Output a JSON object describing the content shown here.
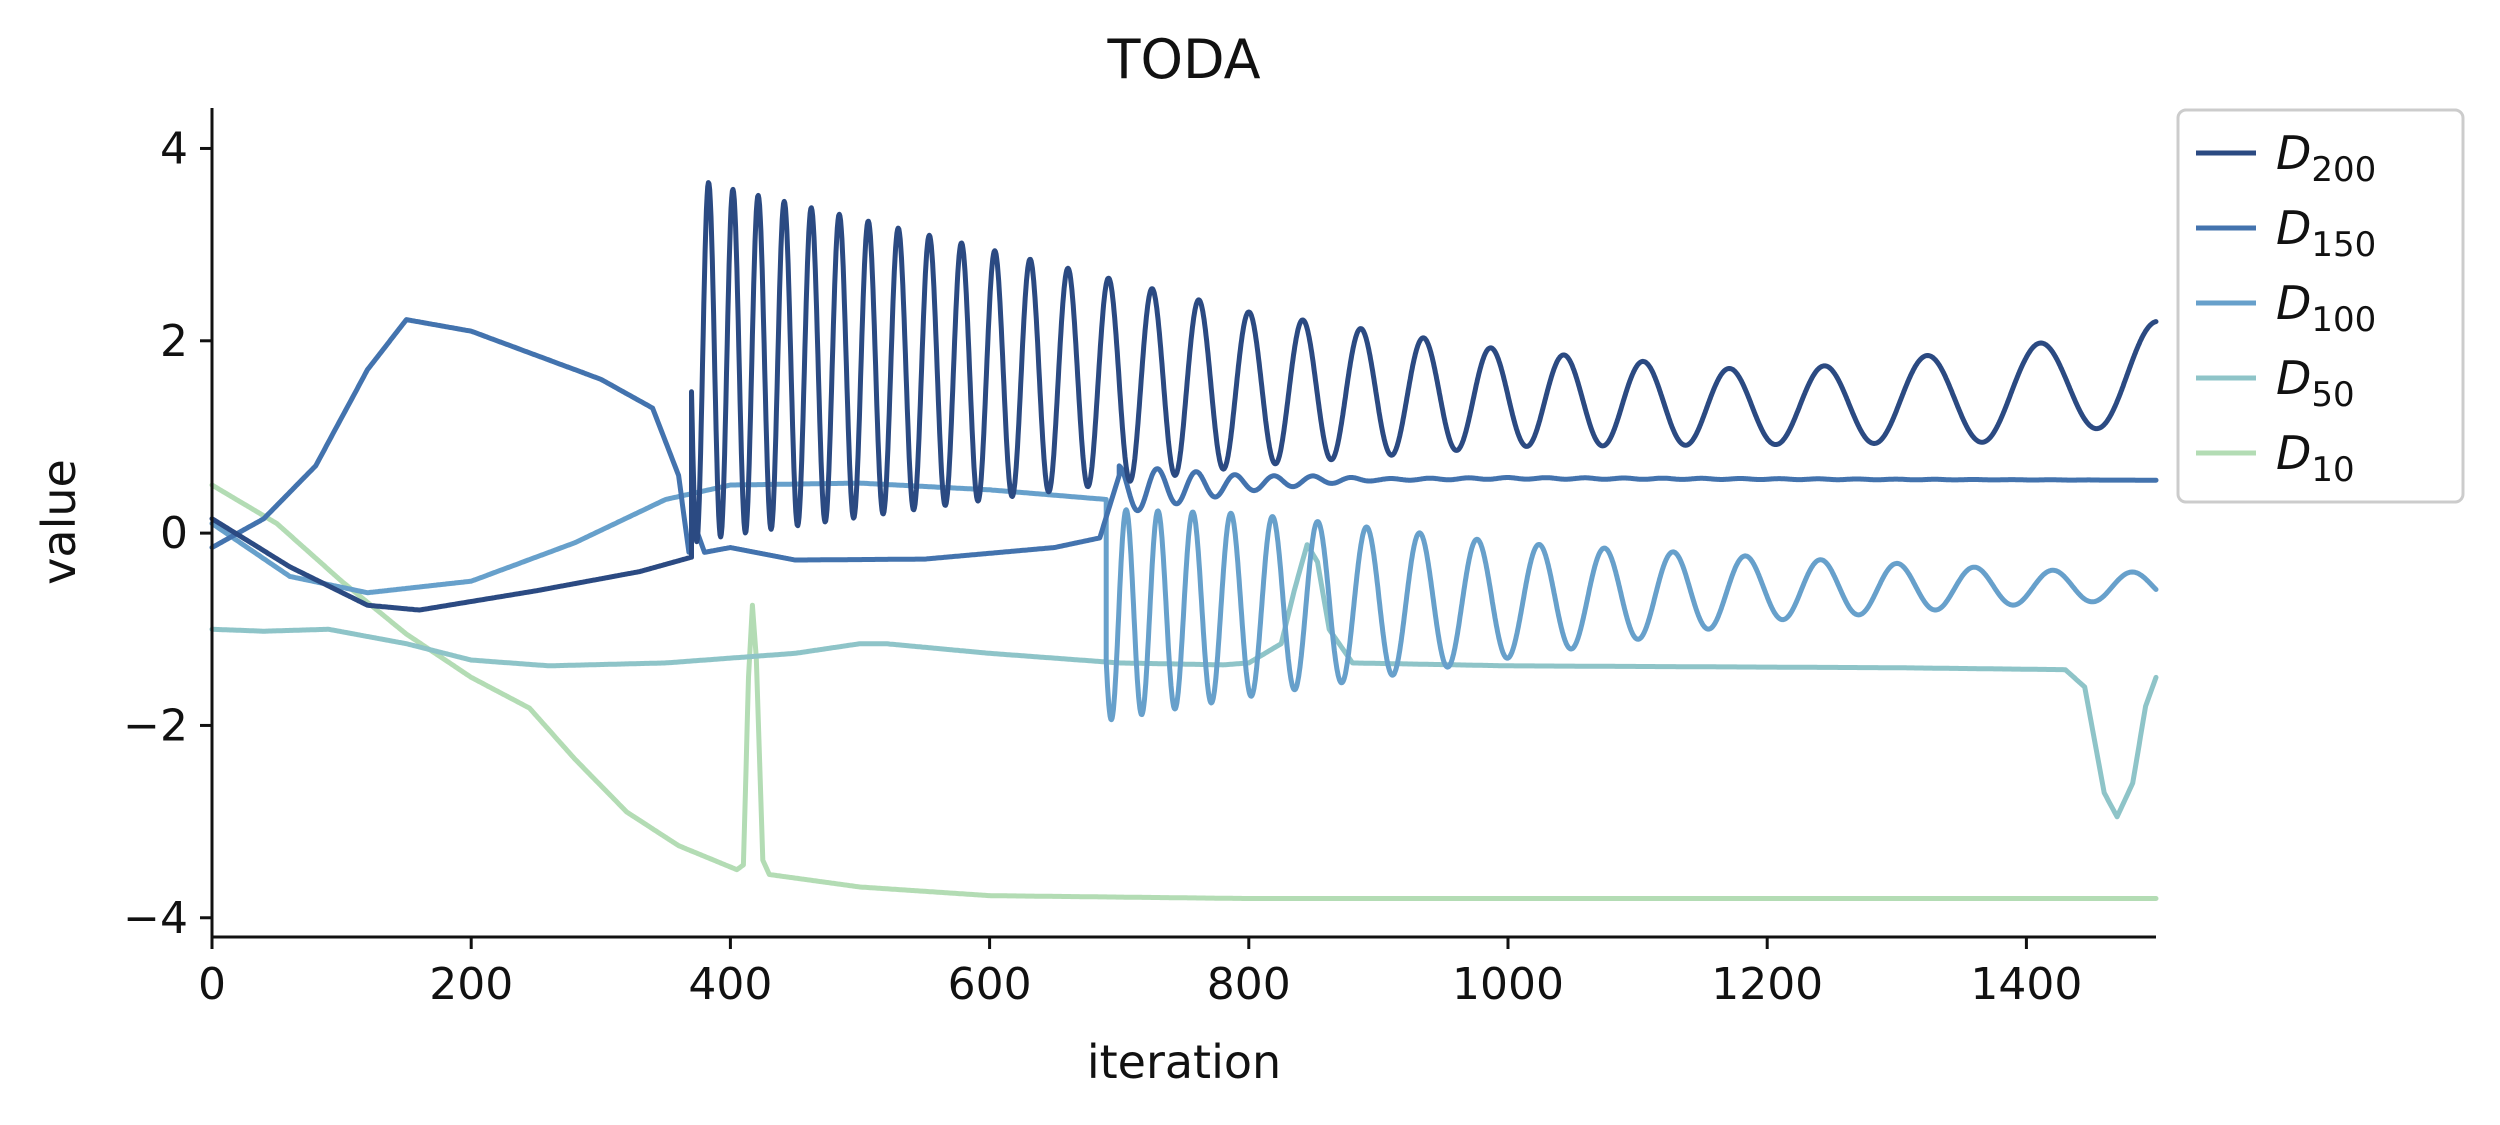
{
  "chart_data": {
    "type": "line",
    "title": "TODA",
    "xlabel": "iteration",
    "ylabel": "value",
    "xlim": [
      0,
      1500
    ],
    "ylim": [
      -4.2,
      4.4
    ],
    "xticks": [
      0,
      200,
      400,
      600,
      800,
      1000,
      1200,
      1400
    ],
    "yticks": [
      -4,
      -2,
      0,
      2,
      4
    ],
    "xtick_labels": [
      "0",
      "200",
      "400",
      "600",
      "800",
      "1000",
      "1200",
      "1400"
    ],
    "ytick_labels": [
      "−4",
      "−2",
      "0",
      "2",
      "4"
    ],
    "legend_position": "outside-top-right",
    "series": [
      {
        "name": "D200",
        "label_main": "D",
        "label_sub": "200",
        "color": "#2b4a82",
        "segments": [
          {
            "x0": 0,
            "x1": 160,
            "kind": "interp",
            "points": [
              [
                0,
                0.15
              ],
              [
                60,
                -0.35
              ],
              [
                120,
                -0.75
              ],
              [
                160,
                -0.8
              ]
            ]
          },
          {
            "x0": 160,
            "x1": 370,
            "kind": "interp",
            "points": [
              [
                160,
                -0.8
              ],
              [
                250,
                -0.6
              ],
              [
                330,
                -0.4
              ],
              [
                370,
                -0.25
              ]
            ]
          },
          {
            "x0": 370,
            "x1": 1500,
            "kind": "osc",
            "center_pts": [
              [
                370,
                1.8
              ],
              [
                600,
                1.65
              ],
              [
                800,
                1.5
              ],
              [
                1000,
                1.4
              ],
              [
                1200,
                1.3
              ],
              [
                1400,
                1.45
              ],
              [
                1500,
                1.7
              ]
            ],
            "amp_pts": [
              [
                370,
                1.9
              ],
              [
                400,
                1.8
              ],
              [
                600,
                1.3
              ],
              [
                800,
                0.8
              ],
              [
                1000,
                0.5
              ],
              [
                1200,
                0.38
              ],
              [
                1400,
                0.5
              ],
              [
                1500,
                0.5
              ]
            ],
            "period_pts": [
              [
                370,
                18
              ],
              [
                600,
                26
              ],
              [
                800,
                40
              ],
              [
                1000,
                55
              ],
              [
                1200,
                72
              ],
              [
                1400,
                90
              ],
              [
                1500,
                90
              ]
            ],
            "phase": 0.25
          }
        ]
      },
      {
        "name": "D150",
        "label_main": "D",
        "label_sub": "150",
        "color": "#4373ae",
        "segments": [
          {
            "x0": 0,
            "x1": 700,
            "kind": "interp",
            "points": [
              [
                0,
                -0.15
              ],
              [
                40,
                0.15
              ],
              [
                80,
                0.7
              ],
              [
                120,
                1.7
              ],
              [
                150,
                2.22
              ],
              [
                200,
                2.1
              ],
              [
                300,
                1.6
              ],
              [
                340,
                1.3
              ],
              [
                360,
                0.6
              ],
              [
                368,
                -0.2
              ],
              [
                372,
                0.1
              ],
              [
                380,
                -0.2
              ],
              [
                400,
                -0.15
              ],
              [
                450,
                -0.28
              ],
              [
                550,
                -0.27
              ],
              [
                650,
                -0.15
              ],
              [
                685,
                -0.05
              ],
              [
                700,
                0.6
              ]
            ]
          },
          {
            "x0": 700,
            "x1": 1500,
            "kind": "osc",
            "center_pts": [
              [
                700,
                0.45
              ],
              [
                850,
                0.55
              ],
              [
                1000,
                0.57
              ],
              [
                1500,
                0.55
              ]
            ],
            "amp_pts": [
              [
                700,
                0.25
              ],
              [
                800,
                0.08
              ],
              [
                900,
                0.01
              ],
              [
                1500,
                0.0
              ]
            ],
            "period_pts": [
              [
                700,
                30
              ],
              [
                1500,
                30
              ]
            ],
            "phase": 0.0
          }
        ]
      },
      {
        "name": "D100",
        "label_main": "D",
        "label_sub": "100",
        "color": "#67a0cb",
        "segments": [
          {
            "x0": 0,
            "x1": 690,
            "kind": "interp",
            "points": [
              [
                0,
                0.1
              ],
              [
                60,
                -0.45
              ],
              [
                120,
                -0.62
              ],
              [
                200,
                -0.5
              ],
              [
                280,
                -0.1
              ],
              [
                350,
                0.35
              ],
              [
                400,
                0.5
              ],
              [
                500,
                0.52
              ],
              [
                600,
                0.45
              ],
              [
                690,
                0.35
              ]
            ]
          },
          {
            "x0": 690,
            "x1": 1500,
            "kind": "osc",
            "center_pts": [
              [
                690,
                -0.85
              ],
              [
                800,
                -0.75
              ],
              [
                1000,
                -0.7
              ],
              [
                1200,
                -0.58
              ],
              [
                1500,
                -0.55
              ]
            ],
            "amp_pts": [
              [
                690,
                1.1
              ],
              [
                800,
                0.95
              ],
              [
                1000,
                0.6
              ],
              [
                1200,
                0.33
              ],
              [
                1400,
                0.18
              ],
              [
                1500,
                0.14
              ]
            ],
            "period_pts": [
              [
                690,
                22
              ],
              [
                800,
                32
              ],
              [
                1000,
                48
              ],
              [
                1200,
                58
              ],
              [
                1500,
                62
              ]
            ],
            "phase": 0.3
          }
        ]
      },
      {
        "name": "D50",
        "label_main": "D",
        "label_sub": "50",
        "color": "#8ec4c8",
        "segments": [
          {
            "x0": 0,
            "x1": 1500,
            "kind": "interp",
            "points": [
              [
                0,
                -1.0
              ],
              [
                40,
                -1.02
              ],
              [
                90,
                -1.0
              ],
              [
                150,
                -1.15
              ],
              [
                200,
                -1.32
              ],
              [
                260,
                -1.38
              ],
              [
                350,
                -1.35
              ],
              [
                450,
                -1.25
              ],
              [
                500,
                -1.15
              ],
              [
                520,
                -1.15
              ],
              [
                600,
                -1.25
              ],
              [
                700,
                -1.35
              ],
              [
                780,
                -1.37
              ],
              [
                800,
                -1.35
              ],
              [
                825,
                -1.15
              ],
              [
                835,
                -0.6
              ],
              [
                845,
                -0.12
              ],
              [
                853,
                -0.3
              ],
              [
                862,
                -1.0
              ],
              [
                880,
                -1.35
              ],
              [
                1000,
                -1.38
              ],
              [
                1300,
                -1.4
              ],
              [
                1430,
                -1.42
              ],
              [
                1445,
                -1.6
              ],
              [
                1460,
                -2.7
              ],
              [
                1470,
                -2.95
              ],
              [
                1482,
                -2.6
              ],
              [
                1492,
                -1.8
              ],
              [
                1500,
                -1.5
              ]
            ]
          }
        ]
      },
      {
        "name": "D10",
        "label_main": "D",
        "label_sub": "10",
        "color": "#b3dcb4",
        "segments": [
          {
            "x0": 0,
            "x1": 1500,
            "kind": "interp",
            "points": [
              [
                0,
                0.5
              ],
              [
                50,
                0.1
              ],
              [
                100,
                -0.5
              ],
              [
                150,
                -1.05
              ],
              [
                200,
                -1.5
              ],
              [
                245,
                -1.82
              ],
              [
                280,
                -2.35
              ],
              [
                320,
                -2.9
              ],
              [
                360,
                -3.25
              ],
              [
                405,
                -3.5
              ],
              [
                410,
                -3.45
              ],
              [
                414,
                -1.5
              ],
              [
                417,
                -0.75
              ],
              [
                420,
                -1.3
              ],
              [
                425,
                -3.4
              ],
              [
                430,
                -3.55
              ],
              [
                500,
                -3.68
              ],
              [
                600,
                -3.77
              ],
              [
                800,
                -3.8
              ],
              [
                1500,
                -3.8
              ]
            ]
          }
        ]
      }
    ]
  }
}
